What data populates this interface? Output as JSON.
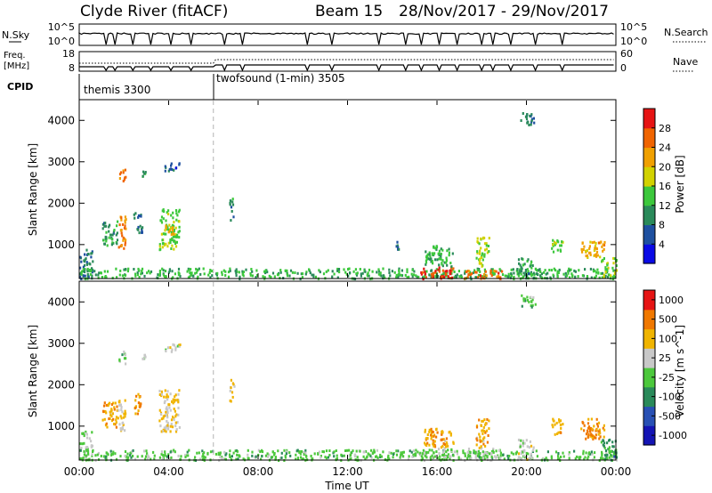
{
  "header": {
    "station": "Clyde River (fitACF)",
    "beam": "Beam 15",
    "dates": "28/Nov/2017 - 29/Nov/2017"
  },
  "nsky_panel": {
    "left_label": "N.Sky",
    "left_ticks": [
      "10^5",
      "10^0"
    ],
    "right_ticks": [
      "10^5",
      "10^0"
    ],
    "right_label": "N.Search"
  },
  "freq_panel": {
    "left_label_top": "Freq.",
    "left_label_bottom": "[MHz]",
    "left_ticks": [
      "18",
      "8"
    ],
    "right_ticks": [
      "60",
      "0"
    ],
    "right_label": "Nave"
  },
  "cpid": {
    "label": "CPID",
    "segments": [
      {
        "label": "themis 3300",
        "start_hour": 0
      },
      {
        "label": "twofsound (1-min) 3505",
        "start_hour": 6
      }
    ]
  },
  "x_axis": {
    "title": "Time UT",
    "ticks": [
      "00:00",
      "04:00",
      "08:00",
      "12:00",
      "16:00",
      "20:00",
      "00:00"
    ],
    "tick_hours": [
      0,
      4,
      8,
      12,
      16,
      20,
      24
    ],
    "range_hours": [
      0,
      24
    ]
  },
  "chart_data": [
    {
      "type": "heatmap",
      "ylabel": "Slant Range [km]",
      "yticks": [
        1000,
        2000,
        3000,
        4000
      ],
      "ylim": [
        180,
        4500
      ],
      "colorbar": {
        "label": "Power [dB]",
        "ticks": [
          "4",
          "8",
          "12",
          "16",
          "20",
          "24",
          "28"
        ],
        "range": [
          0,
          30
        ],
        "colors": [
          "#0a0ae6",
          "#1e50a0",
          "#2a8a5a",
          "#3cc83c",
          "#d2d200",
          "#f0a000",
          "#f06400",
          "#e61414"
        ]
      },
      "blobs": [
        {
          "t": [
            0.0,
            0.6
          ],
          "r": [
            200,
            900
          ],
          "v": 8
        },
        {
          "t": [
            1.0,
            1.7
          ],
          "r": [
            1000,
            1600
          ],
          "v": 10
        },
        {
          "t": [
            1.7,
            2.05
          ],
          "r": [
            900,
            1700
          ],
          "v": 22
        },
        {
          "t": [
            1.75,
            2.05
          ],
          "r": [
            2500,
            2850
          ],
          "v": 24
        },
        {
          "t": [
            2.4,
            2.8
          ],
          "r": [
            1300,
            1800
          ],
          "v": 8
        },
        {
          "t": [
            2.8,
            3.0
          ],
          "r": [
            2650,
            2800
          ],
          "v": 12
        },
        {
          "t": [
            3.55,
            4.45
          ],
          "r": [
            900,
            1900
          ],
          "v": 14
        },
        {
          "t": [
            3.8,
            4.2
          ],
          "r": [
            1200,
            1500
          ],
          "v": 20
        },
        {
          "t": [
            3.8,
            4.5
          ],
          "r": [
            2800,
            3000
          ],
          "v": 6
        },
        {
          "t": [
            6.7,
            6.9
          ],
          "r": [
            1600,
            2150
          ],
          "v": 9
        },
        {
          "t": [
            0.0,
            24.0
          ],
          "r": [
            200,
            450
          ],
          "v": 12
        },
        {
          "t": [
            14.0,
            14.3
          ],
          "r": [
            900,
            1100
          ],
          "v": 6
        },
        {
          "t": [
            15.2,
            16.7
          ],
          "r": [
            200,
            480
          ],
          "v": 26
        },
        {
          "t": [
            15.4,
            16.7
          ],
          "r": [
            500,
            1000
          ],
          "v": 12
        },
        {
          "t": [
            17.2,
            18.9
          ],
          "r": [
            200,
            400
          ],
          "v": 24
        },
        {
          "t": [
            17.7,
            18.3
          ],
          "r": [
            500,
            1200
          ],
          "v": 16
        },
        {
          "t": [
            19.6,
            20.3
          ],
          "r": [
            200,
            700
          ],
          "v": 10
        },
        {
          "t": [
            19.7,
            20.4
          ],
          "r": [
            3900,
            4200
          ],
          "v": 8
        },
        {
          "t": [
            21.1,
            21.6
          ],
          "r": [
            800,
            1200
          ],
          "v": 14
        },
        {
          "t": [
            22.4,
            23.5
          ],
          "r": [
            700,
            1100
          ],
          "v": 20
        },
        {
          "t": [
            23.3,
            24.0
          ],
          "r": [
            200,
            700
          ],
          "v": 14
        }
      ]
    },
    {
      "type": "heatmap",
      "ylabel": "Slant Range [km]",
      "yticks": [
        1000,
        2000,
        3000,
        4000
      ],
      "ylim": [
        180,
        4500
      ],
      "colorbar": {
        "label": "Velocity [m s^-1]",
        "ticks": [
          "1000",
          "500",
          "100",
          "25",
          "-25",
          "-100",
          "-500",
          "-1000"
        ],
        "range": [
          -1200,
          1200
        ],
        "colors": [
          "#1414b4",
          "#2850b4",
          "#2a8a5a",
          "#4cc83c",
          "#c8c8c8",
          "#f0b400",
          "#f07800",
          "#e61414"
        ]
      },
      "blobs": [
        {
          "t": [
            0.0,
            0.6
          ],
          "r": [
            200,
            900
          ],
          "v": 0
        },
        {
          "t": [
            1.0,
            1.7
          ],
          "r": [
            1000,
            1600
          ],
          "v": 500
        },
        {
          "t": [
            1.7,
            2.05
          ],
          "r": [
            900,
            1700
          ],
          "v": 300
        },
        {
          "t": [
            1.75,
            2.05
          ],
          "r": [
            2500,
            2850
          ],
          "v": -150
        },
        {
          "t": [
            2.4,
            2.8
          ],
          "r": [
            1300,
            1800
          ],
          "v": 600
        },
        {
          "t": [
            2.8,
            3.0
          ],
          "r": [
            2650,
            2800
          ],
          "v": 150
        },
        {
          "t": [
            3.55,
            4.45
          ],
          "r": [
            900,
            1900
          ],
          "v": 300
        },
        {
          "t": [
            3.8,
            4.5
          ],
          "r": [
            2800,
            3000
          ],
          "v": 150
        },
        {
          "t": [
            6.7,
            6.9
          ],
          "r": [
            1600,
            2150
          ],
          "v": 400
        },
        {
          "t": [
            0.0,
            24.0
          ],
          "r": [
            200,
            450
          ],
          "v": -150
        },
        {
          "t": [
            15.2,
            16.7
          ],
          "r": [
            200,
            500
          ],
          "v": 0
        },
        {
          "t": [
            15.4,
            16.7
          ],
          "r": [
            500,
            1000
          ],
          "v": 500
        },
        {
          "t": [
            17.2,
            18.9
          ],
          "r": [
            200,
            500
          ],
          "v": 0
        },
        {
          "t": [
            17.7,
            18.3
          ],
          "r": [
            500,
            1200
          ],
          "v": 500
        },
        {
          "t": [
            19.6,
            20.3
          ],
          "r": [
            200,
            700
          ],
          "v": 150
        },
        {
          "t": [
            19.7,
            20.4
          ],
          "r": [
            3900,
            4200
          ],
          "v": -150
        },
        {
          "t": [
            21.1,
            21.6
          ],
          "r": [
            800,
            1200
          ],
          "v": 500
        },
        {
          "t": [
            22.4,
            23.5
          ],
          "r": [
            700,
            1200
          ],
          "v": 600
        },
        {
          "t": [
            23.3,
            24.0
          ],
          "r": [
            200,
            700
          ],
          "v": -400
        }
      ]
    }
  ]
}
